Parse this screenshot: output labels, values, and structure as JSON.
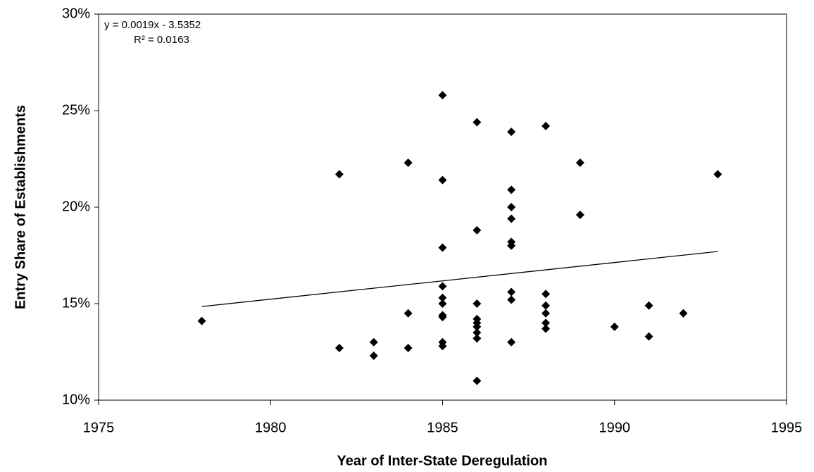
{
  "chart_data": {
    "type": "scatter",
    "xlabel": "Year of Inter-State Deregulation",
    "ylabel": "Entry Share of Establishments",
    "annotations": [
      "y = 0.0019x - 3.5352",
      "R² = 0.0163"
    ],
    "x": [
      1978,
      1982,
      1982,
      1983,
      1983,
      1984,
      1984,
      1984,
      1985,
      1985,
      1985,
      1985,
      1985,
      1985,
      1985,
      1985,
      1985,
      1985,
      1986,
      1986,
      1986,
      1986,
      1986,
      1986,
      1986,
      1986,
      1986,
      1987,
      1987,
      1987,
      1987,
      1987,
      1987,
      1987,
      1987,
      1987,
      1988,
      1988,
      1988,
      1988,
      1988,
      1988,
      1989,
      1989,
      1990,
      1991,
      1991,
      1992,
      1993
    ],
    "values": [
      14.1,
      21.7,
      12.7,
      13.0,
      12.3,
      22.3,
      14.5,
      12.7,
      25.8,
      21.4,
      17.9,
      15.9,
      15.3,
      15.0,
      14.4,
      14.3,
      13.0,
      12.8,
      24.4,
      18.8,
      15.0,
      14.2,
      14.0,
      13.8,
      13.5,
      13.2,
      11.0,
      23.9,
      20.9,
      20.0,
      19.4,
      18.2,
      18.0,
      15.6,
      15.2,
      13.0,
      24.2,
      15.5,
      14.9,
      14.5,
      14.0,
      13.7,
      22.3,
      19.6,
      13.8,
      14.9,
      13.3,
      14.5,
      21.7
    ],
    "color": "#000000",
    "trendline": {
      "x": [
        1978,
        1993
      ],
      "values": [
        14.85,
        17.7
      ]
    },
    "xlim": [
      1975,
      1995
    ],
    "xticks": [
      1975,
      1980,
      1985,
      1990,
      1995
    ],
    "ylim": [
      10,
      30
    ],
    "yticks": [
      {
        "value": 10,
        "label": "10%"
      },
      {
        "value": 15,
        "label": "15%"
      },
      {
        "value": 20,
        "label": "20%"
      },
      {
        "value": 25,
        "label": "25%"
      },
      {
        "value": 30,
        "label": "30%"
      }
    ]
  }
}
